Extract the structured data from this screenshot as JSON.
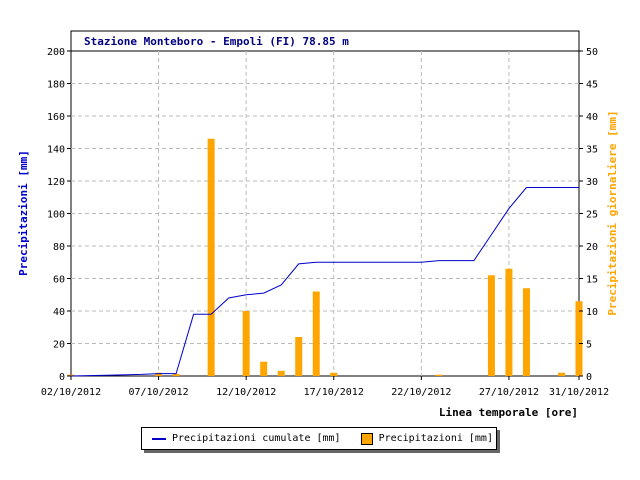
{
  "chart_data": {
    "type": "bar+line",
    "title": "Stazione Monteboro - Empoli (FI) 78.85 m",
    "xlabel": "Linea temporale [ore]",
    "ylabel_left": "Precipitazioni [mm]",
    "ylabel_right": "Precipitazioni giornaliere [mm]",
    "ylim_left": [
      0,
      200
    ],
    "ylim_right": [
      0,
      50
    ],
    "yticks_left": [
      "0",
      "20",
      "40",
      "60",
      "80",
      "100",
      "120",
      "140",
      "160",
      "180",
      "200"
    ],
    "yticks_right": [
      "0",
      "5",
      "10",
      "15",
      "20",
      "25",
      "30",
      "35",
      "40",
      "45",
      "50"
    ],
    "xlim_days": [
      2,
      31
    ],
    "xticks": [
      {
        "label": "02/10/2012",
        "day": 2
      },
      {
        "label": "07/10/2012",
        "day": 7
      },
      {
        "label": "12/10/2012",
        "day": 12
      },
      {
        "label": "17/10/2012",
        "day": 17
      },
      {
        "label": "22/10/2012",
        "day": 22
      },
      {
        "label": "27/10/2012",
        "day": 27
      },
      {
        "label": "31/10/2012",
        "day": 31
      }
    ],
    "grid": true,
    "legend_position": "bottom",
    "series": [
      {
        "name": "Precipitazioni cumulate [mm]",
        "type": "line",
        "axis": "left",
        "color": "#0000cc",
        "x": [
          2,
          4,
          6,
          7,
          8,
          9,
          10,
          11,
          12,
          13,
          14,
          15,
          16,
          17,
          18,
          19,
          20,
          21,
          22,
          23,
          24,
          25,
          26,
          27,
          28,
          29,
          30,
          31
        ],
        "y": [
          0,
          0.5,
          1,
          1.5,
          1.5,
          38,
          38,
          48,
          50,
          51,
          56,
          69,
          70,
          70,
          70,
          70,
          70,
          70,
          70,
          71,
          71,
          71,
          87,
          103,
          116,
          116,
          116,
          116
        ]
      },
      {
        "name": "Precipitazioni [mm]",
        "type": "bar",
        "axis": "right",
        "color": "#ffa500",
        "x": [
          2,
          7,
          8,
          10,
          12,
          13,
          14,
          15,
          16,
          17,
          23,
          26,
          27,
          28,
          30,
          31
        ],
        "y": [
          0.2,
          0.5,
          0.3,
          36.5,
          10,
          2.2,
          0.8,
          6,
          13,
          0.5,
          0.2,
          15.5,
          16.5,
          13.5,
          0.5,
          11.5
        ]
      }
    ]
  }
}
